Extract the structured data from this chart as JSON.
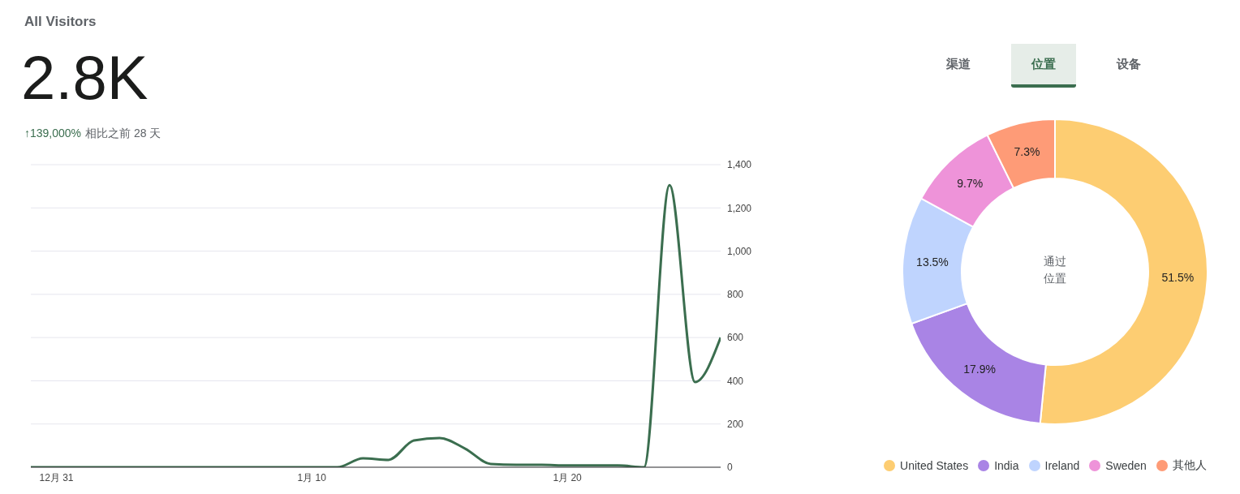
{
  "chart_data": [
    {
      "type": "line",
      "title": "All Visitors",
      "subtitle": "2.8K",
      "annotations": [
        "↑139,000%",
        "相比之前 28 天"
      ],
      "categories": [
        null,
        "12月 31",
        null,
        null,
        null,
        null,
        null,
        null,
        null,
        null,
        null,
        "1月 10",
        null,
        null,
        null,
        null,
        null,
        null,
        null,
        null,
        null,
        "1月 20",
        null,
        null,
        null,
        null,
        null,
        null
      ],
      "series": [
        {
          "color": "#3b6e4f",
          "values": [
            0,
            0,
            0,
            0,
            0,
            0,
            0,
            0,
            0,
            0,
            0,
            0,
            0,
            41,
            34,
            124,
            135,
            86,
            15,
            11,
            11,
            8,
            8,
            8,
            0,
            1305,
            394,
            600
          ]
        }
      ],
      "ylim": [
        0,
        1400
      ],
      "yticks": [
        {
          "value": 0,
          "label": "0"
        },
        {
          "value": 200,
          "label": "200"
        },
        {
          "value": 400,
          "label": "400"
        },
        {
          "value": 600,
          "label": "600"
        },
        {
          "value": 800,
          "label": "800"
        },
        {
          "value": 1000,
          "label": "1,000"
        },
        {
          "value": 1200,
          "label": "1,200"
        },
        {
          "value": 1400,
          "label": "1,400"
        }
      ],
      "grid": "y",
      "legend": false
    },
    {
      "type": "donut",
      "annotations": [
        "渠道",
        "位置",
        "设备",
        "通过",
        "位置"
      ],
      "categories": [
        "United States",
        "India",
        "Ireland",
        "Sweden",
        "其他人"
      ],
      "values": [
        51.5,
        17.9,
        13.5,
        9.7,
        7.3
      ],
      "colors": [
        "#fdcd72",
        "#a984e5",
        "#bfd4fe",
        "#ee93d9",
        "#fe9b77"
      ],
      "value_labels": [
        "51.5%",
        "17.9%",
        "13.5%",
        "9.7%",
        "7.3%"
      ],
      "legend": "bottom"
    }
  ]
}
